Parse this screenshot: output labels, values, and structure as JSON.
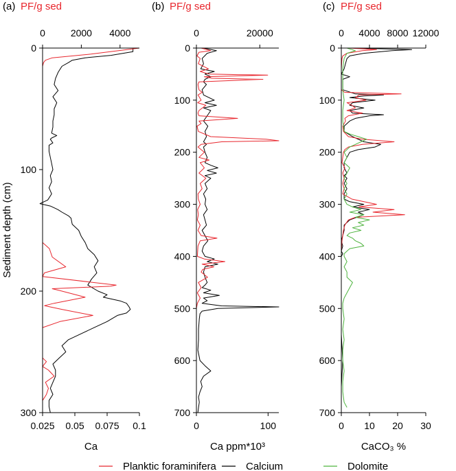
{
  "colors": {
    "foram": "#e8262d",
    "calcium": "#000000",
    "dolomite": "#4db33d"
  },
  "y_label": "Sediment depth (cm)",
  "legend": [
    {
      "label": "Planktic foraminifera",
      "color": "#e8262d"
    },
    {
      "label": "Calcium",
      "color": "#000000"
    },
    {
      "label": "Dolomite",
      "color": "#4db33d"
    }
  ],
  "chart_data": [
    {
      "type": "line",
      "panel_label": "(a)",
      "top_title": "PF/g sed",
      "xlabel": "Ca",
      "ylabel": "Sediment depth (cm)",
      "ylim": [
        0,
        300
      ],
      "yticks": [
        0,
        100,
        200,
        300
      ],
      "xlim_bottom": [
        0.025,
        0.1
      ],
      "xticks_bottom": [
        0.025,
        0.05,
        0.075,
        0.1
      ],
      "xtick_labels_bottom": [
        "0.025",
        "0.05",
        "0.075",
        "0.1"
      ],
      "xlim_top": [
        0,
        5000
      ],
      "xticks_top": [
        0,
        2000,
        4000
      ],
      "xtick_labels_top": [
        "0",
        "2000",
        "4000"
      ],
      "series": [
        {
          "name": "Calcium",
          "axis": "bottom",
          "color": "#000000",
          "depth": [
            0,
            3,
            6,
            8,
            10,
            12,
            15,
            20,
            25,
            30,
            35,
            40,
            45,
            50,
            55,
            60,
            65,
            70,
            72,
            74,
            75,
            78,
            80,
            85,
            90,
            95,
            100,
            105,
            110,
            115,
            120,
            125,
            128,
            130,
            132,
            133,
            135,
            138,
            140,
            145,
            150,
            155,
            160,
            165,
            170,
            175,
            180,
            185,
            190,
            195,
            200,
            203,
            205,
            208,
            210,
            213,
            215,
            218,
            220,
            225,
            230,
            235,
            240,
            245,
            250,
            255,
            260,
            265,
            270,
            275,
            280,
            285,
            290,
            295,
            300
          ],
          "values": [
            0.095,
            0.095,
            0.078,
            0.058,
            0.048,
            0.045,
            0.04,
            0.037,
            0.035,
            0.034,
            0.037,
            0.033,
            0.036,
            0.034,
            0.034,
            0.033,
            0.033,
            0.032,
            0.036,
            0.032,
            0.031,
            0.033,
            0.03,
            0.03,
            0.031,
            0.032,
            0.033,
            0.031,
            0.032,
            0.03,
            0.032,
            0.029,
            0.023,
            0.031,
            0.035,
            0.037,
            0.04,
            0.045,
            0.047,
            0.048,
            0.053,
            0.055,
            0.058,
            0.06,
            0.065,
            0.068,
            0.065,
            0.067,
            0.063,
            0.06,
            0.068,
            0.075,
            0.072,
            0.085,
            0.09,
            0.092,
            0.093,
            0.09,
            0.083,
            0.075,
            0.065,
            0.055,
            0.045,
            0.04,
            0.043,
            0.038,
            0.033,
            0.035,
            0.035,
            0.033,
            0.031,
            0.033,
            0.03,
            0.03,
            0.031
          ]
        },
        {
          "name": "Planktic foraminifera",
          "axis": "top",
          "color": "#e8262d",
          "depth": [
            0,
            2,
            5,
            8,
            10,
            12,
            15,
            20,
            50,
            100,
            150,
            160,
            165,
            172,
            180,
            185,
            188,
            195,
            196,
            198,
            200,
            205,
            210,
            212,
            215,
            220,
            225,
            230,
            240,
            250,
            255,
            258,
            262,
            265,
            270,
            275,
            280,
            285,
            290,
            300
          ],
          "values": [
            5000,
            4000,
            2500,
            500,
            150,
            50,
            0,
            0,
            0,
            0,
            0,
            0,
            350,
            500,
            1200,
            100,
            0,
            3800,
            3500,
            500,
            1000,
            2200,
            600,
            100,
            1000,
            2600,
            900,
            0,
            0,
            0,
            0,
            200,
            0,
            300,
            600,
            150,
            300,
            200,
            0,
            0
          ]
        }
      ]
    },
    {
      "type": "line",
      "panel_label": "(b)",
      "top_title": "PF/g sed",
      "xlabel": "Ca ppm*10³",
      "ylabel": "",
      "ylim": [
        0,
        700
      ],
      "yticks": [
        0,
        100,
        200,
        300,
        400,
        500,
        600,
        700
      ],
      "xlim_bottom": [
        0,
        115
      ],
      "xticks_bottom": [
        0,
        100
      ],
      "xtick_labels_bottom": [
        "0",
        "100"
      ],
      "xlim_top": [
        0,
        26000
      ],
      "xticks_top": [
        0,
        20000
      ],
      "xtick_labels_top": [
        "0",
        "20000"
      ],
      "series": [
        {
          "name": "Calcium",
          "axis": "bottom",
          "color": "#000000",
          "depth": [
            0,
            5,
            10,
            20,
            30,
            40,
            45,
            50,
            55,
            60,
            65,
            70,
            80,
            90,
            100,
            105,
            110,
            115,
            120,
            130,
            140,
            150,
            160,
            170,
            180,
            185,
            190,
            200,
            210,
            220,
            225,
            230,
            235,
            240,
            245,
            250,
            260,
            270,
            280,
            290,
            300,
            310,
            320,
            330,
            340,
            350,
            360,
            370,
            380,
            390,
            400,
            405,
            410,
            415,
            420,
            430,
            440,
            450,
            455,
            460,
            465,
            470,
            475,
            480,
            485,
            490,
            495,
            497,
            500,
            505,
            510,
            520,
            540,
            560,
            580,
            600,
            610,
            620,
            630,
            640,
            650,
            660,
            670,
            680,
            690,
            700
          ],
          "values": [
            10,
            28,
            15,
            8,
            10,
            6,
            25,
            12,
            20,
            12,
            10,
            14,
            8,
            10,
            25,
            12,
            28,
            10,
            20,
            15,
            10,
            16,
            12,
            14,
            10,
            14,
            10,
            12,
            15,
            12,
            20,
            30,
            15,
            28,
            12,
            20,
            12,
            15,
            10,
            13,
            12,
            15,
            10,
            12,
            14,
            8,
            12,
            16,
            10,
            8,
            12,
            25,
            15,
            30,
            12,
            10,
            12,
            15,
            12,
            8,
            20,
            10,
            32,
            10,
            15,
            8,
            35,
            115,
            30,
            8,
            5,
            4,
            3,
            3,
            2,
            5,
            12,
            20,
            10,
            6,
            8,
            5,
            3,
            4,
            3,
            2
          ]
        },
        {
          "name": "Planktic foraminifera",
          "axis": "top",
          "color": "#e8262d",
          "depth": [
            0,
            5,
            8,
            15,
            20,
            30,
            40,
            45,
            50,
            52,
            55,
            58,
            60,
            65,
            70,
            80,
            85,
            90,
            100,
            105,
            110,
            120,
            125,
            130,
            135,
            140,
            145,
            150,
            160,
            170,
            175,
            178,
            180,
            185,
            190,
            200,
            210,
            215,
            220,
            230,
            240,
            250,
            260,
            270,
            280,
            290,
            300,
            310,
            320,
            330,
            340,
            350,
            360,
            365,
            370,
            380,
            400,
            405,
            410,
            415,
            420,
            425,
            430,
            440,
            450,
            460,
            470,
            480,
            490,
            500,
            520
          ],
          "values": [
            1500,
            4500,
            800,
            200,
            1200,
            600,
            3800,
            1200,
            4000,
            22500,
            2500,
            5000,
            21000,
            800,
            500,
            800,
            1800,
            500,
            1500,
            400,
            3000,
            800,
            500,
            800,
            13000,
            800,
            1500,
            200,
            600,
            4500,
            22000,
            26000,
            8000,
            1500,
            500,
            2500,
            800,
            4000,
            1200,
            2500,
            800,
            3000,
            1200,
            1800,
            500,
            600,
            1200,
            400,
            600,
            300,
            1200,
            500,
            1500,
            6500,
            1200,
            500,
            300,
            2500,
            9000,
            1800,
            5500,
            2000,
            1500,
            3500,
            600,
            1500,
            300,
            1200,
            300,
            0,
            0
          ]
        }
      ]
    },
    {
      "type": "line",
      "panel_label": "(c)",
      "top_title": "PF/g sed",
      "xlabel": "CaCO₃ %",
      "ylabel": "",
      "ylim": [
        0,
        700
      ],
      "yticks": [
        0,
        100,
        200,
        300,
        400,
        500,
        600,
        700
      ],
      "xlim_bottom": [
        0,
        30
      ],
      "xticks_bottom": [
        0,
        10,
        20,
        30
      ],
      "xtick_labels_bottom": [
        "0",
        "10",
        "20",
        "30"
      ],
      "xlim_top": [
        0,
        12000
      ],
      "xticks_top": [
        0,
        4000,
        8000,
        12000
      ],
      "xtick_labels_top": [
        "0",
        "4000",
        "8000",
        "12000"
      ],
      "series": [
        {
          "name": "Calcium",
          "axis": "bottom",
          "color": "#000000",
          "depth": [
            0,
            3,
            5,
            10,
            15,
            20,
            30,
            40,
            50,
            55,
            60,
            80,
            88,
            90,
            92,
            95,
            100,
            105,
            110,
            115,
            120,
            125,
            128,
            130,
            135,
            140,
            145,
            150,
            160,
            170,
            180,
            185,
            190,
            195,
            200,
            210,
            220,
            230,
            240,
            245,
            250,
            260,
            270,
            280,
            290,
            295,
            300,
            305,
            310,
            315,
            320,
            330,
            340,
            350,
            360,
            370,
            380,
            390,
            395,
            400,
            450,
            500,
            550,
            600,
            650,
            700
          ],
          "values": [
            5,
            25,
            18,
            8,
            3,
            2,
            1.5,
            1,
            0,
            3,
            0.5,
            0.5,
            5,
            15,
            8,
            3,
            12,
            4,
            3,
            8,
            3,
            4,
            15,
            10,
            5,
            3,
            2,
            1,
            1,
            4,
            8,
            14,
            12,
            6,
            3,
            2,
            1,
            1,
            2,
            1,
            2,
            1,
            2,
            1,
            1,
            3,
            8,
            4,
            10,
            6,
            8,
            3,
            1,
            1,
            0.5,
            0,
            0.5,
            0,
            0.5,
            0,
            0,
            0,
            0,
            0.5,
            0,
            0
          ]
        },
        {
          "name": "Planktic foraminifera",
          "axis": "top",
          "color": "#e8262d",
          "depth": [
            0,
            3,
            5,
            10,
            15,
            20,
            30,
            40,
            60,
            80,
            85,
            88,
            90,
            95,
            100,
            105,
            110,
            115,
            120,
            125,
            130,
            135,
            140,
            150,
            160,
            170,
            175,
            180,
            185,
            190,
            195,
            200,
            210,
            220,
            230,
            240,
            250,
            260,
            270,
            280,
            290,
            300,
            305,
            310,
            315,
            320,
            325,
            330,
            340,
            350,
            360,
            370,
            380,
            390,
            400,
            420,
            440
          ],
          "values": [
            1000,
            5000,
            3000,
            800,
            200,
            100,
            50,
            0,
            0,
            0,
            500,
            8500,
            2500,
            2000,
            3500,
            800,
            1500,
            2000,
            800,
            3000,
            1000,
            500,
            600,
            200,
            300,
            1000,
            3000,
            7500,
            3000,
            1000,
            500,
            300,
            200,
            100,
            500,
            200,
            400,
            200,
            400,
            200,
            1500,
            5000,
            2500,
            7500,
            4500,
            9000,
            2000,
            1000,
            500,
            300,
            200,
            100,
            50,
            0,
            0,
            0,
            0
          ]
        },
        {
          "name": "Dolomite",
          "axis": "bottom",
          "color": "#4db33d",
          "depth": [
            0,
            5,
            10,
            20,
            40,
            60,
            80,
            100,
            120,
            140,
            160,
            165,
            170,
            175,
            180,
            185,
            190,
            195,
            200,
            210,
            220,
            230,
            240,
            250,
            260,
            270,
            280,
            290,
            300,
            305,
            310,
            315,
            320,
            325,
            330,
            335,
            340,
            345,
            350,
            355,
            360,
            365,
            370,
            375,
            380,
            385,
            390,
            395,
            400,
            410,
            420,
            430,
            440,
            450,
            460,
            470,
            480,
            490,
            500,
            520,
            540,
            560,
            580,
            600,
            620,
            640,
            660,
            680,
            690
          ],
          "values": [
            2,
            5,
            2,
            1,
            0.5,
            0.5,
            0.5,
            1,
            0.5,
            0.5,
            1,
            3,
            6,
            9,
            7,
            5,
            3,
            2,
            1,
            2,
            1,
            3,
            2,
            1,
            2,
            1,
            2,
            1,
            2,
            4,
            7,
            3,
            8,
            5,
            10,
            6,
            8,
            4,
            7,
            3,
            2,
            4,
            5,
            7,
            8,
            3,
            2,
            1,
            1,
            2,
            1,
            2,
            2,
            4,
            3,
            2,
            1,
            0.5,
            0.5,
            1,
            0.5,
            1,
            0.5,
            0.5,
            1,
            0.5,
            0.5,
            1,
            2
          ]
        }
      ]
    }
  ]
}
